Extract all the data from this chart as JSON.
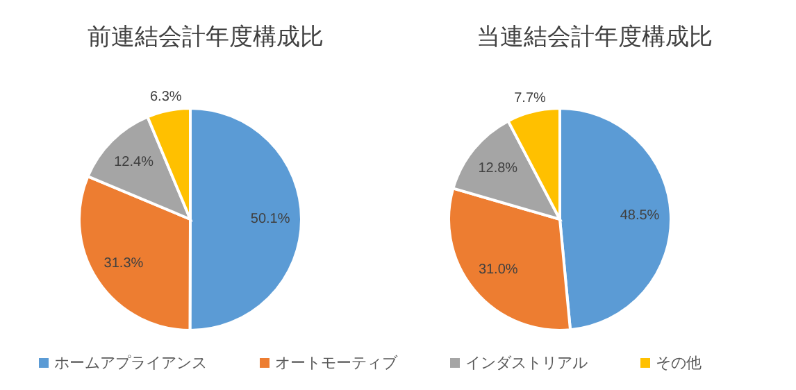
{
  "chart_data": [
    {
      "type": "pie",
      "title": "前連結会計年度構成比",
      "categories": [
        "ホームアプライアンス",
        "オートモーティブ",
        "インダストリアル",
        "その他"
      ],
      "values": [
        50.1,
        31.3,
        12.4,
        6.3
      ],
      "colors": [
        "#5b9bd5",
        "#ed7d31",
        "#a5a5a5",
        "#ffc000"
      ],
      "value_labels": [
        "50.1%",
        "31.3%",
        "12.4%",
        "6.3%"
      ],
      "legend": "bottom"
    },
    {
      "type": "pie",
      "title": "当連結会計年度構成比",
      "categories": [
        null,
        null,
        null,
        null
      ],
      "values": [
        48.5,
        31.0,
        12.8,
        7.7
      ],
      "colors": [
        "#5b9bd5",
        "#ed7d31",
        "#a5a5a5",
        "#ffc000"
      ],
      "value_labels": [
        "48.5%",
        "31.0%",
        "12.8%",
        "7.7%"
      ]
    }
  ]
}
